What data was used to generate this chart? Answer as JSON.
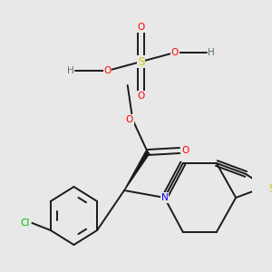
{
  "bg_color": "#e8e8e8",
  "atom_colors": {
    "C": "#1a1a1a",
    "N": "#0000ff",
    "O": "#ff0000",
    "S_thio": "#cccc00",
    "S_sulfate": "#cccc00",
    "Cl": "#00bb00",
    "H": "#607070"
  },
  "bond_color": "#1a1a1a",
  "line_width": 1.4,
  "font_size": 7.5
}
